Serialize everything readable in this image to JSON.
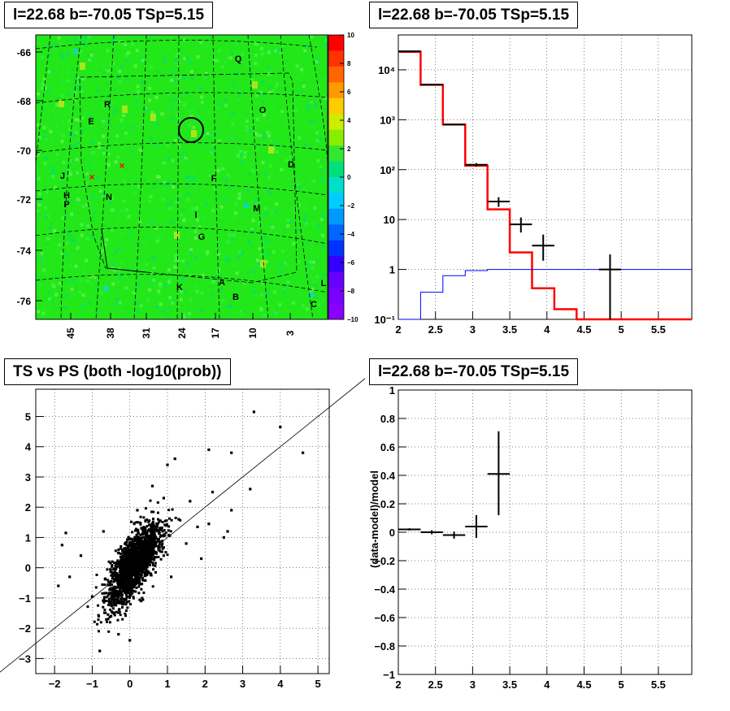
{
  "titles": {
    "map": "l=22.68 b=-70.05 TSp=5.15",
    "spectrum": "l=22.68 b=-70.05 TSp=5.15",
    "scatter": "TS vs PS (both -log10(prob))",
    "residual": "l=22.68 b=-70.05 TSp=5.15"
  },
  "chart_data": [
    {
      "type": "heatmap",
      "panel": "map",
      "x_tick_labels": [
        "45",
        "38",
        "31",
        "24",
        "17",
        "10",
        "3"
      ],
      "y_tick_labels": [
        "-66",
        "-68",
        "-70",
        "-72",
        "-74",
        "-76"
      ],
      "colorbar": {
        "ticks": [
          "10",
          "8",
          "6",
          "4",
          "2",
          "0",
          "−2",
          "−4",
          "−6",
          "−8",
          "−10"
        ],
        "range": [
          -10,
          10
        ]
      },
      "dominant_value": 0,
      "region_labels": [
        "Q",
        "R",
        "O",
        "E",
        "D",
        "J",
        "F",
        "H",
        "P",
        "N",
        "M",
        "I",
        "G",
        "K",
        "A",
        "L",
        "B",
        "C"
      ],
      "markers": [
        "circle at l=22.68 b=-70.05",
        "x",
        "x"
      ]
    },
    {
      "type": "line",
      "panel": "spectrum",
      "x_tick_labels": [
        "2",
        "2.5",
        "3",
        "3.5",
        "4",
        "4.5",
        "5",
        "5.5"
      ],
      "y_tick_labels": [
        "10⁻¹",
        "1",
        "10",
        "10²",
        "10³",
        "10⁴"
      ],
      "xlim": [
        2,
        5.95
      ],
      "ylim": [
        0.1,
        50000
      ],
      "yscale": "log",
      "grid": true,
      "series": [
        {
          "style": "step",
          "color": "#ff0000",
          "edges": [
            2.0,
            2.3,
            2.6,
            2.9,
            3.2,
            3.5,
            3.8,
            4.1,
            4.4,
            4.7,
            5.0,
            5.95
          ],
          "values": [
            23000,
            5000,
            800,
            120,
            16,
            2.2,
            0.42,
            0.16,
            0.1,
            0.1,
            0.1
          ]
        },
        {
          "style": "step",
          "color": "#0000ff",
          "edges": [
            2.0,
            2.3,
            2.6,
            2.9,
            3.2,
            3.5,
            3.8,
            4.1,
            4.4,
            4.7,
            5.0,
            5.95
          ],
          "values": [
            0.1,
            0.35,
            0.75,
            0.95,
            1.0,
            1.0,
            1.0,
            1.0,
            1.0,
            1.0,
            1.0
          ]
        },
        {
          "style": "errorbar",
          "color": "#000000",
          "x": [
            2.15,
            2.45,
            2.75,
            3.05,
            3.35,
            3.65,
            3.95,
            4.85
          ],
          "xerr": [
            0.15,
            0.15,
            0.15,
            0.15,
            0.15,
            0.15,
            0.15,
            0.15
          ],
          "y": [
            23500,
            5050,
            800,
            125,
            23,
            8,
            3,
            1
          ],
          "ylow": [
            23300,
            4980,
            780,
            115,
            18,
            5.5,
            1.5,
            0.1
          ],
          "yhigh": [
            23700,
            5120,
            830,
            135,
            28,
            11,
            5,
            2
          ]
        }
      ]
    },
    {
      "type": "scatter",
      "panel": "scatter",
      "x_tick_labels": [
        "−2",
        "−1",
        "0",
        "1",
        "2",
        "3",
        "4",
        "5"
      ],
      "y_tick_labels": [
        "−3",
        "−2",
        "−1",
        "0",
        "1",
        "2",
        "3",
        "4",
        "5"
      ],
      "xlim": [
        -2.5,
        5.3
      ],
      "ylim": [
        -3.5,
        5.9
      ],
      "grid": true,
      "reference_line": {
        "slope": 1,
        "intercept": 0
      },
      "notable_points": [
        {
          "x": 3.3,
          "y": 5.15
        },
        {
          "x": 4.0,
          "y": 4.65
        },
        {
          "x": 4.6,
          "y": 3.8
        },
        {
          "x": 2.1,
          "y": 3.9
        },
        {
          "x": 2.7,
          "y": 3.8
        },
        {
          "x": 1.2,
          "y": 3.6
        },
        {
          "x": 1.0,
          "y": 3.4
        },
        {
          "x": 3.2,
          "y": 2.6
        },
        {
          "x": 2.7,
          "y": 1.9
        },
        {
          "x": 2.6,
          "y": 1.2
        },
        {
          "x": 2.1,
          "y": 1.45
        },
        {
          "x": 1.8,
          "y": 1.35
        },
        {
          "x": -1.7,
          "y": 1.15
        },
        {
          "x": -1.8,
          "y": 0.75
        },
        {
          "x": -1.9,
          "y": -0.6
        },
        {
          "x": -1.6,
          "y": -0.3
        },
        {
          "x": -0.8,
          "y": -2.75
        },
        {
          "x": -1.0,
          "y": -0.95
        },
        {
          "x": -0.3,
          "y": -2.2
        },
        {
          "x": 0.0,
          "y": -2.4
        },
        {
          "x": 1.3,
          "y": 1.6
        },
        {
          "x": 0.6,
          "y": 2.7
        },
        {
          "x": 0.9,
          "y": 2.3
        },
        {
          "x": 1.6,
          "y": 2.2
        },
        {
          "x": 2.5,
          "y": 1.0
        },
        {
          "x": -1.3,
          "y": 0.4
        },
        {
          "x": -0.7,
          "y": 1.2
        },
        {
          "x": 0.2,
          "y": 1.9
        },
        {
          "x": 1.1,
          "y": -0.3
        },
        {
          "x": 0.9,
          "y": 0.4
        },
        {
          "x": 1.5,
          "y": 0.8
        },
        {
          "x": -0.5,
          "y": -1.6
        },
        {
          "x": 0.3,
          "y": -1.1
        },
        {
          "x": 1.9,
          "y": 0.3
        },
        {
          "x": 0.5,
          "y": 0.3
        },
        {
          "x": 2.2,
          "y": 2.5
        }
      ]
    },
    {
      "type": "scatter",
      "panel": "residual",
      "ylabel": "(data-model)/model",
      "x_tick_labels": [
        "2",
        "2.5",
        "3",
        "3.5",
        "4",
        "4.5",
        "5",
        "5.5"
      ],
      "y_tick_labels": [
        "−1",
        "−0.8",
        "−0.6",
        "−0.4",
        "−0.2",
        "0",
        "0.2",
        "0.4",
        "0.6",
        "0.8",
        "1"
      ],
      "xlim": [
        2,
        5.95
      ],
      "ylim": [
        -1,
        1
      ],
      "grid": true,
      "points": [
        {
          "x": 2.15,
          "xerr": 0.15,
          "y": 0.02,
          "ylow": 0.012,
          "yhigh": 0.028
        },
        {
          "x": 2.45,
          "xerr": 0.15,
          "y": 0.0,
          "ylow": -0.014,
          "yhigh": 0.014
        },
        {
          "x": 2.75,
          "xerr": 0.15,
          "y": -0.02,
          "ylow": -0.045,
          "yhigh": 0.005
        },
        {
          "x": 3.05,
          "xerr": 0.15,
          "y": 0.04,
          "ylow": -0.04,
          "yhigh": 0.12
        },
        {
          "x": 3.35,
          "xerr": 0.15,
          "y": 0.41,
          "ylow": 0.12,
          "yhigh": 0.71
        }
      ]
    }
  ]
}
